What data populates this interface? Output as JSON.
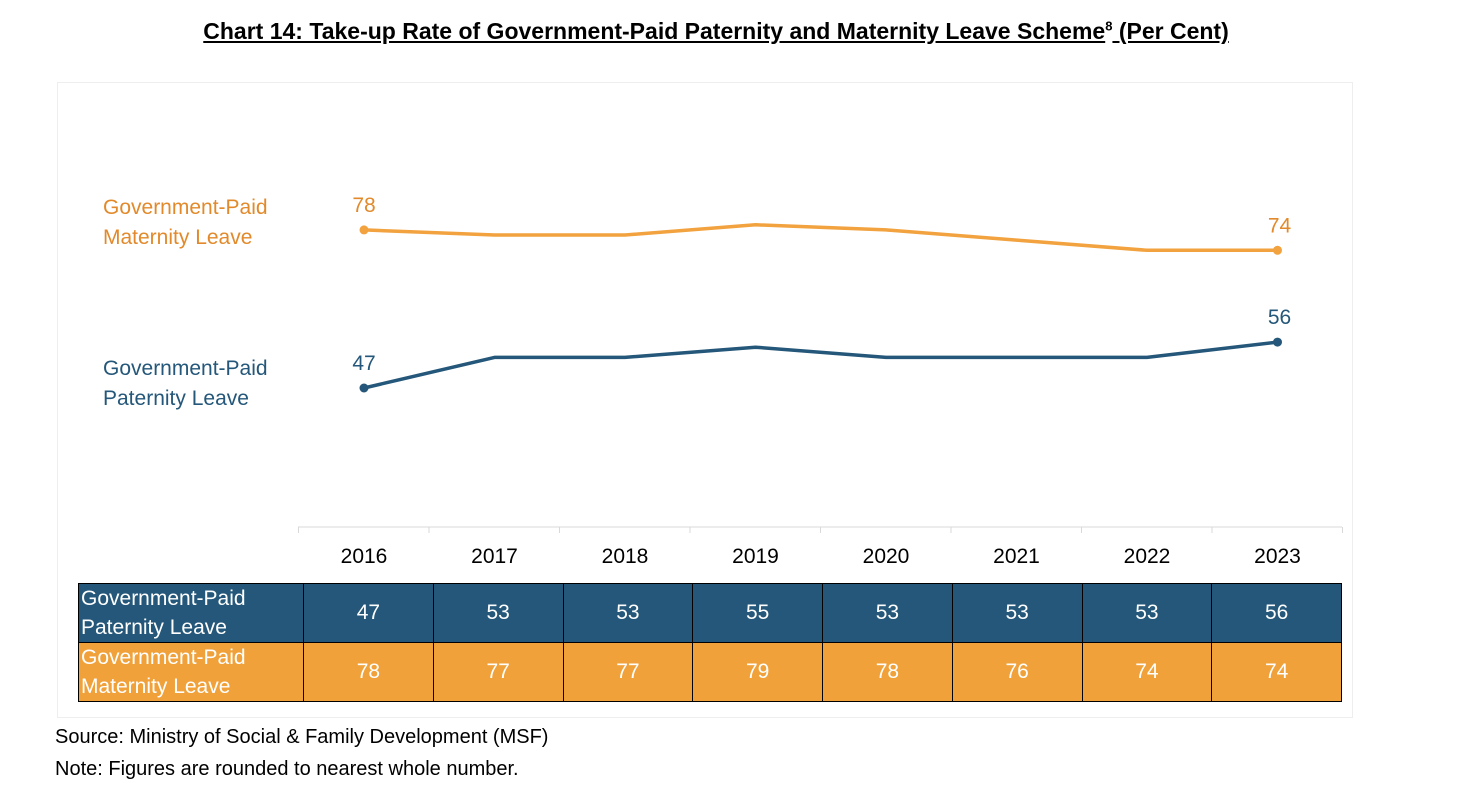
{
  "title": {
    "text": "Chart 14: Take-up Rate of Government-Paid Paternity and Maternity Leave Scheme",
    "footnote_marker": "8",
    "suffix": " (Per Cent)"
  },
  "colors": {
    "paternity": "#245779",
    "maternity": "#f0a13a",
    "maternity_line": "#f2a23e",
    "maternity_text": "#e28a2b"
  },
  "chart_data": {
    "type": "line",
    "x": [
      "2016",
      "2017",
      "2018",
      "2019",
      "2020",
      "2021",
      "2022",
      "2023"
    ],
    "series": [
      {
        "name": "Government-Paid Maternity Leave",
        "name_lines": [
          "Government-Paid",
          "Maternity Leave"
        ],
        "values": [
          78,
          77,
          77,
          79,
          78,
          76,
          74,
          74
        ],
        "end_labels": {
          "first": "78",
          "last": "74"
        }
      },
      {
        "name": "Government-Paid Paternity Leave",
        "name_lines": [
          "Government-Paid",
          "Paternity Leave"
        ],
        "values": [
          47,
          53,
          53,
          55,
          53,
          53,
          53,
          56
        ],
        "end_labels": {
          "first": "47",
          "last": "56"
        }
      }
    ],
    "grid": false,
    "legend": "inline-left"
  },
  "table": {
    "rows": [
      {
        "label_lines": [
          "Government-Paid",
          "Paternity Leave"
        ],
        "values": [
          "47",
          "53",
          "53",
          "55",
          "53",
          "53",
          "53",
          "56"
        ]
      },
      {
        "label_lines": [
          "Government-Paid",
          "Maternity Leave"
        ],
        "values": [
          "78",
          "77",
          "77",
          "79",
          "78",
          "76",
          "74",
          "74"
        ]
      }
    ]
  },
  "footer": {
    "source": "Source: Ministry of Social & Family Development (MSF)",
    "note": "Note: Figures are rounded to nearest whole number."
  }
}
